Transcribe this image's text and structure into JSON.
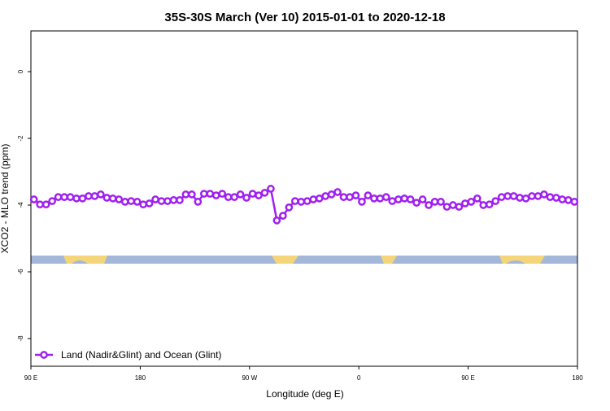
{
  "chart_data": {
    "type": "line",
    "title": "35S-30S March (Ver 10)   2015-01-01 to 2020-12-18",
    "x_label": "Longitude (deg E)",
    "y_label": "XCO2 - MLO trend (ppm)",
    "xlim": [
      90,
      540
    ],
    "xticks": [
      {
        "value": 90,
        "label": "90 E"
      },
      {
        "value": 180,
        "label": "180"
      },
      {
        "value": 270,
        "label": "90 W"
      },
      {
        "value": 360,
        "label": "0"
      },
      {
        "value": 450,
        "label": "90 E"
      },
      {
        "value": 540,
        "label": "180"
      }
    ],
    "ylim": [
      -8.83,
      1.22
    ],
    "yticks": [
      0,
      -2,
      -4,
      -6,
      -8
    ],
    "legend": "bottom-left",
    "series": [
      {
        "name": "Land (Nadir&Glint) and Ocean (Glint)",
        "color": "#a020f0",
        "x": [
          92.5,
          97.5,
          102.5,
          107.5,
          112.5,
          117.5,
          122.5,
          127.5,
          132.5,
          137.5,
          142.5,
          147.5,
          152.5,
          157.5,
          162.5,
          167.5,
          172.5,
          177.5,
          182.5,
          187.5,
          192.5,
          197.5,
          202.5,
          207.5,
          212.5,
          217.5,
          222.5,
          227.5,
          232.5,
          237.5,
          242.5,
          247.5,
          252.5,
          257.5,
          262.5,
          267.5,
          272.5,
          277.5,
          282.5,
          287.5,
          292.5,
          297.5,
          302.5,
          307.5,
          312.5,
          317.5,
          322.5,
          327.5,
          332.5,
          337.5,
          342.5,
          347.5,
          352.5,
          357.5,
          362.5,
          367.5,
          372.5,
          377.5,
          382.5,
          387.5,
          392.5,
          397.5,
          402.5,
          407.5,
          412.5,
          417.5,
          422.5,
          427.5,
          432.5,
          437.5,
          442.5,
          447.5,
          452.5,
          457.5,
          462.5,
          467.5,
          472.5,
          477.5,
          482.5,
          487.5,
          492.5,
          497.5,
          502.5,
          507.5,
          512.5,
          517.5,
          522.5,
          527.5,
          532.5,
          537.5
        ],
        "values": [
          -3.83,
          -3.98,
          -3.98,
          -3.88,
          -3.76,
          -3.76,
          -3.76,
          -3.8,
          -3.8,
          -3.73,
          -3.73,
          -3.68,
          -3.78,
          -3.8,
          -3.83,
          -3.9,
          -3.88,
          -3.9,
          -3.98,
          -3.95,
          -3.83,
          -3.88,
          -3.88,
          -3.85,
          -3.85,
          -3.68,
          -3.68,
          -3.9,
          -3.66,
          -3.66,
          -3.71,
          -3.66,
          -3.76,
          -3.76,
          -3.68,
          -3.78,
          -3.66,
          -3.71,
          -3.63,
          -3.51,
          -4.46,
          -4.32,
          -4.07,
          -3.88,
          -3.9,
          -3.88,
          -3.83,
          -3.8,
          -3.73,
          -3.68,
          -3.61,
          -3.76,
          -3.76,
          -3.71,
          -3.9,
          -3.71,
          -3.8,
          -3.8,
          -3.76,
          -3.88,
          -3.83,
          -3.8,
          -3.83,
          -3.93,
          -3.83,
          -4.0,
          -3.9,
          -3.9,
          -4.05,
          -4.0,
          -4.05,
          -3.95,
          -3.9,
          -3.8,
          -4.0,
          -3.98,
          -3.88,
          -3.76,
          -3.73,
          -3.73,
          -3.78,
          -3.8,
          -3.73,
          -3.73,
          -3.68,
          -3.76,
          -3.78,
          -3.83,
          -3.85,
          -3.9
        ]
      }
    ]
  }
}
